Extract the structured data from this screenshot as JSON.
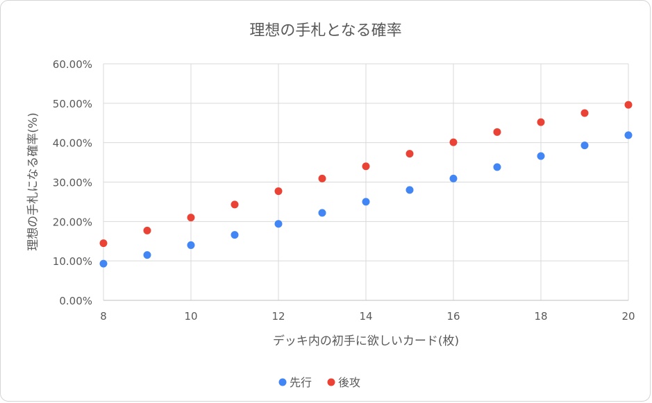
{
  "chart_data": {
    "type": "scatter",
    "title": "理想の手札となる確率",
    "xlabel": "デッキ内の初手に欲しいカード(枚)",
    "ylabel": "理想の手札になる確率(%)",
    "xlim": [
      8,
      20
    ],
    "ylim": [
      0,
      0.6
    ],
    "x_ticks": [
      "8",
      "10",
      "12",
      "14",
      "16",
      "18",
      "20"
    ],
    "y_ticks": [
      "0.00%",
      "10.00%",
      "20.00%",
      "30.00%",
      "40.00%",
      "50.00%",
      "60.00%"
    ],
    "grid": true,
    "legend_position": "bottom",
    "x": [
      8,
      9,
      10,
      11,
      12,
      13,
      14,
      15,
      16,
      17,
      18,
      19,
      20
    ],
    "series": [
      {
        "name": "先行",
        "color": "#4285f4",
        "values": [
          0.093,
          0.115,
          0.14,
          0.166,
          0.194,
          0.222,
          0.25,
          0.28,
          0.309,
          0.338,
          0.366,
          0.393,
          0.419
        ]
      },
      {
        "name": "後攻",
        "color": "#ea4335",
        "values": [
          0.145,
          0.177,
          0.21,
          0.243,
          0.277,
          0.309,
          0.34,
          0.372,
          0.401,
          0.427,
          0.452,
          0.475,
          0.496
        ]
      }
    ]
  }
}
